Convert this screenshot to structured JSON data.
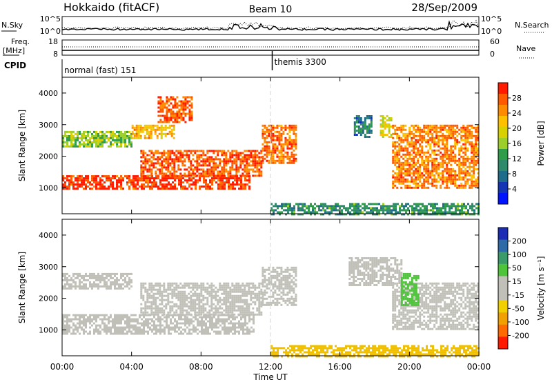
{
  "header": {
    "station": "Hokkaido (fitACF)",
    "beam": "Beam 10",
    "date": "28/Sep/2009"
  },
  "noise_panel": {
    "left_label": "N.Sky",
    "right_label": "N.Search",
    "left_ticks": [
      "10^5",
      "10^0"
    ],
    "right_ticks": [
      "10^5",
      "10^0"
    ]
  },
  "freq_panel": {
    "left_label_top": "Freq.",
    "left_label_bottom": "[MHz]",
    "left_ticks": [
      "18",
      "8"
    ],
    "right_label": "Nave",
    "right_ticks": [
      "60",
      "0"
    ]
  },
  "cpid_panel": {
    "label": "CPID",
    "modes": [
      {
        "name": "normal (fast) 151",
        "start_hour": 0
      },
      {
        "name": "themis 3300",
        "start_hour": 12.1
      }
    ]
  },
  "x_axis": {
    "label": "Time UT",
    "tick_labels": [
      "00:00",
      "04:00",
      "08:00",
      "12:00",
      "16:00",
      "20:00",
      "00:00"
    ]
  },
  "power_colorbar": {
    "label": "Power [dB]",
    "tick_labels": [
      "28",
      "24",
      "20",
      "16",
      "12",
      "8",
      "4"
    ],
    "colors": [
      "#ff1a00",
      "#ff5a00",
      "#ff8c00",
      "#ffc000",
      "#d8d000",
      "#9ccf2a",
      "#2e9c48",
      "#2e8a6a",
      "#1f6b8a",
      "#1436b4",
      "#0014ff"
    ]
  },
  "velocity_colorbar": {
    "label": "Velocity [m s⁻¹]",
    "tick_labels": [
      "200",
      "100",
      "50",
      "15",
      "-15",
      "-50",
      "-100",
      "-200"
    ],
    "colors": [
      "#1a2db4",
      "#2f6aa8",
      "#3a9a6a",
      "#4ec43a",
      "#c0c0b8",
      "#c0c0b8",
      "#f0d000",
      "#f0a000",
      "#ff6a00",
      "#ff1a00"
    ]
  },
  "chart_data": [
    {
      "type": "heatmap",
      "title": "Power",
      "ylabel": "Slant Range [km]",
      "xlabel": "Time UT",
      "xlim": [
        0,
        24
      ],
      "ylim": [
        180,
        4500
      ],
      "y_ticks": [
        1000,
        2000,
        3000,
        4000
      ],
      "blobs": [
        {
          "t0": 0.0,
          "t1": 10.8,
          "r0": 950,
          "r1": 1400,
          "v": 29
        },
        {
          "t0": 4.5,
          "t1": 11.5,
          "r0": 1400,
          "r1": 2200,
          "v": 27
        },
        {
          "t0": 0.0,
          "t1": 4.0,
          "r0": 2300,
          "r1": 2800,
          "v": 15
        },
        {
          "t0": 4.0,
          "t1": 6.5,
          "r0": 2600,
          "r1": 3000,
          "v": 22
        },
        {
          "t0": 5.5,
          "t1": 7.5,
          "r0": 3100,
          "r1": 3900,
          "v": 27
        },
        {
          "t0": 11.5,
          "t1": 13.5,
          "r0": 1800,
          "r1": 3000,
          "v": 26
        },
        {
          "t0": 16.8,
          "t1": 17.8,
          "r0": 2600,
          "r1": 3300,
          "v": 8
        },
        {
          "t0": 18.3,
          "t1": 19.0,
          "r0": 2600,
          "r1": 3300,
          "v": 18
        },
        {
          "t0": 19.0,
          "t1": 24.0,
          "r0": 1000,
          "r1": 3000,
          "v": 25
        },
        {
          "t0": 12.0,
          "t1": 24.0,
          "r0": 180,
          "r1": 520,
          "v": 10
        }
      ]
    },
    {
      "type": "heatmap",
      "title": "Velocity",
      "ylabel": "Slant Range [km]",
      "xlabel": "Time UT",
      "xlim": [
        0,
        24
      ],
      "ylim": [
        180,
        4500
      ],
      "y_ticks": [
        1000,
        2000,
        3000,
        4000
      ],
      "blobs": [
        {
          "t0": 0.0,
          "t1": 11.0,
          "r0": 900,
          "r1": 1500,
          "v": 0
        },
        {
          "t0": 4.5,
          "t1": 11.5,
          "r0": 1500,
          "r1": 2500,
          "v": 0
        },
        {
          "t0": 0.0,
          "t1": 4.0,
          "r0": 2300,
          "r1": 2800,
          "v": 0
        },
        {
          "t0": 11.5,
          "t1": 13.5,
          "r0": 1800,
          "r1": 3000,
          "v": 0
        },
        {
          "t0": 16.5,
          "t1": 19.5,
          "r0": 2400,
          "r1": 3300,
          "v": 0
        },
        {
          "t0": 19.0,
          "t1": 24.0,
          "r0": 1000,
          "r1": 2500,
          "v": 0
        },
        {
          "t0": 19.5,
          "t1": 20.5,
          "r0": 1800,
          "r1": 2800,
          "v": 40
        },
        {
          "t0": 12.0,
          "t1": 24.0,
          "r0": 180,
          "r1": 520,
          "v": -40
        }
      ]
    }
  ]
}
